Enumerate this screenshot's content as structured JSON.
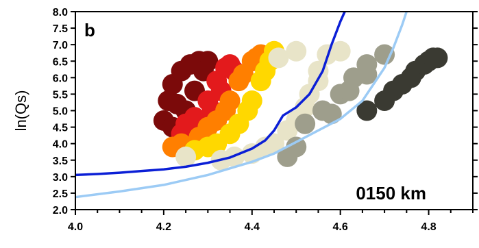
{
  "chart_data": {
    "type": "scatter",
    "panel_label": "b",
    "annotation": "0150 km",
    "title": "",
    "xlabel": "",
    "ylabel": "ln(Qs)",
    "xlim": [
      4.0,
      4.9
    ],
    "ylim": [
      2.0,
      8.0
    ],
    "x_ticks": [
      "4.0",
      "4.2",
      "4.4",
      "4.6",
      "4.8"
    ],
    "y_ticks": [
      "2.0",
      "2.5",
      "3.0",
      "3.5",
      "4.0",
      "4.5",
      "5.0",
      "5.5",
      "6.0",
      "6.5",
      "7.0",
      "7.5",
      "8.0"
    ],
    "grid": false,
    "legend": "none",
    "scatter_bands": [
      {
        "color": "#7b0a0a",
        "points": [
          [
            4.21,
            5.3
          ],
          [
            4.22,
            5.8
          ],
          [
            4.24,
            6.2
          ],
          [
            4.26,
            6.4
          ],
          [
            4.28,
            6.5
          ],
          [
            4.3,
            6.5
          ],
          [
            4.2,
            4.7
          ],
          [
            4.22,
            4.5
          ],
          [
            4.25,
            5.0
          ],
          [
            4.27,
            5.6
          ],
          [
            4.23,
            5.2
          ],
          [
            4.29,
            6.2
          ]
        ]
      },
      {
        "color": "#e31a1c",
        "points": [
          [
            4.24,
            4.3
          ],
          [
            4.27,
            4.8
          ],
          [
            4.3,
            5.3
          ],
          [
            4.32,
            5.9
          ],
          [
            4.34,
            6.3
          ],
          [
            4.35,
            6.4
          ],
          [
            4.26,
            4.1
          ],
          [
            4.29,
            4.6
          ],
          [
            4.33,
            5.6
          ],
          [
            4.31,
            5.0
          ],
          [
            4.36,
            6.2
          ],
          [
            4.25,
            4.6
          ]
        ]
      },
      {
        "color": "#ff7f00",
        "points": [
          [
            4.22,
            3.9
          ],
          [
            4.28,
            4.2
          ],
          [
            4.32,
            4.7
          ],
          [
            4.35,
            5.3
          ],
          [
            4.37,
            5.9
          ],
          [
            4.4,
            6.5
          ],
          [
            4.42,
            6.7
          ],
          [
            4.3,
            4.5
          ],
          [
            4.34,
            5.0
          ],
          [
            4.38,
            6.1
          ],
          [
            4.41,
            6.6
          ],
          [
            4.24,
            4.0
          ]
        ]
      },
      {
        "color": "#ffd800",
        "points": [
          [
            4.27,
            3.8
          ],
          [
            4.32,
            4.0
          ],
          [
            4.37,
            4.6
          ],
          [
            4.4,
            5.3
          ],
          [
            4.42,
            5.9
          ],
          [
            4.44,
            6.5
          ],
          [
            4.45,
            6.8
          ],
          [
            4.35,
            4.3
          ],
          [
            4.39,
            5.0
          ],
          [
            4.43,
            6.2
          ],
          [
            4.3,
            3.9
          ]
        ]
      },
      {
        "color": "#e8e4c8",
        "points": [
          [
            4.25,
            3.6
          ],
          [
            4.33,
            3.5
          ],
          [
            4.4,
            3.7
          ],
          [
            4.45,
            4.0
          ],
          [
            4.5,
            4.7
          ],
          [
            4.53,
            5.5
          ],
          [
            4.55,
            6.2
          ],
          [
            4.57,
            6.7
          ],
          [
            4.6,
            6.8
          ],
          [
            4.48,
            4.4
          ],
          [
            4.52,
            5.1
          ],
          [
            4.55,
            5.9
          ],
          [
            4.46,
            6.6
          ],
          [
            4.5,
            6.8
          ],
          [
            4.43,
            3.9
          ],
          [
            4.36,
            3.6
          ]
        ]
      },
      {
        "color": "#9e9e8c",
        "points": [
          [
            4.52,
            4.6
          ],
          [
            4.56,
            5.0
          ],
          [
            4.6,
            5.5
          ],
          [
            4.63,
            6.0
          ],
          [
            4.66,
            6.4
          ],
          [
            4.7,
            6.7
          ],
          [
            4.58,
            4.9
          ],
          [
            4.62,
            5.6
          ],
          [
            4.66,
            6.1
          ],
          [
            4.48,
            3.6
          ],
          [
            4.5,
            3.9
          ]
        ]
      },
      {
        "color": "#3a3a32",
        "points": [
          [
            4.66,
            5.0
          ],
          [
            4.7,
            5.3
          ],
          [
            4.74,
            5.8
          ],
          [
            4.77,
            6.2
          ],
          [
            4.8,
            6.5
          ],
          [
            4.82,
            6.6
          ],
          [
            4.72,
            5.6
          ],
          [
            4.76,
            6.0
          ],
          [
            4.79,
            6.4
          ],
          [
            4.81,
            6.6
          ]
        ]
      }
    ],
    "series": [
      {
        "color": "#0b1fd6",
        "x": [
          4.0,
          4.05,
          4.1,
          4.15,
          4.2,
          4.25,
          4.3,
          4.35,
          4.4,
          4.43,
          4.45,
          4.47,
          4.5,
          4.53,
          4.56,
          4.58,
          4.6,
          4.61
        ],
        "y": [
          3.05,
          3.08,
          3.12,
          3.17,
          3.22,
          3.3,
          3.42,
          3.58,
          3.85,
          4.1,
          4.4,
          4.85,
          5.1,
          5.5,
          6.2,
          7.0,
          7.7,
          8.0
        ]
      },
      {
        "color": "#9ccbf5",
        "x": [
          4.0,
          4.1,
          4.2,
          4.3,
          4.4,
          4.45,
          4.5,
          4.55,
          4.6,
          4.65,
          4.7,
          4.72,
          4.74,
          4.75
        ],
        "y": [
          2.38,
          2.55,
          2.75,
          3.05,
          3.45,
          3.7,
          4.05,
          4.4,
          4.75,
          5.3,
          6.3,
          6.9,
          7.6,
          8.0
        ]
      }
    ]
  }
}
